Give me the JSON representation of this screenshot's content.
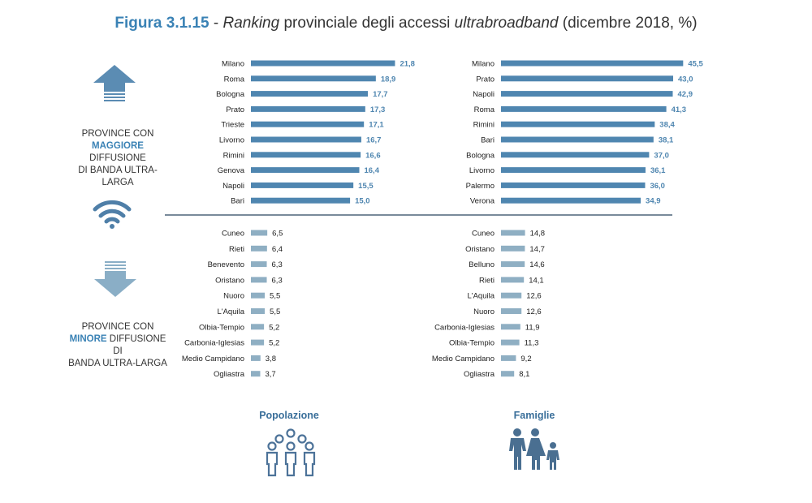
{
  "header": {
    "figure_label": "Figura 3.1.15",
    "sep": " - ",
    "part1": "Ranking",
    "part2": " provinciale degli accessi ",
    "part3": "ultrabroadband",
    "part4": " (dicembre 2018, %)"
  },
  "side_top": {
    "line1": "PROVINCE CON",
    "highlight": "MAGGIORE",
    "line2": " DIFFUSIONE",
    "line3": "DI BANDA ULTRA-",
    "line4": "LARGA"
  },
  "side_bottom": {
    "line1": "PROVINCE CON",
    "highlight": "MINORE",
    "line2": " DIFFUSIONE DI",
    "line3": "BANDA ULTRA-LARGA"
  },
  "footer": {
    "left": "Popolazione",
    "right": "Famiglie"
  },
  "colors": {
    "top_bar": "#4f86b0",
    "bottom_bar": "#8fafc3",
    "divider": "#4d6478",
    "icon": "#5b8cb3",
    "icon_dark": "#4a6f91"
  },
  "icons": [
    "arrow-up-icon",
    "wifi-icon",
    "arrow-down-icon",
    "people-group-icon",
    "family-icon"
  ],
  "chart_data": [
    {
      "type": "bar",
      "orientation": "horizontal",
      "group": "Popolazione",
      "section": "top",
      "categories": [
        "Milano",
        "Roma",
        "Bologna",
        "Prato",
        "Trieste",
        "Livorno",
        "Rimini",
        "Genova",
        "Napoli",
        "Bari"
      ],
      "values": [
        21.8,
        18.9,
        17.7,
        17.3,
        17.1,
        16.7,
        16.6,
        16.4,
        15.5,
        15.0
      ],
      "labels": [
        "21,8",
        "18,9",
        "17,7",
        "17,3",
        "17,1",
        "16,7",
        "16,6",
        "16,4",
        "15,5",
        "15,0"
      ]
    },
    {
      "type": "bar",
      "orientation": "horizontal",
      "group": "Famiglie",
      "section": "top",
      "categories": [
        "Milano",
        "Prato",
        "Napoli",
        "Roma",
        "Rimini",
        "Bari",
        "Bologna",
        "Livorno",
        "Palermo",
        "Verona"
      ],
      "values": [
        45.5,
        43.0,
        42.9,
        41.3,
        38.4,
        38.1,
        37.0,
        36.1,
        36.0,
        34.9
      ],
      "labels": [
        "45,5",
        "43,0",
        "42,9",
        "41,3",
        "38,4",
        "38,1",
        "37,0",
        "36,1",
        "36,0",
        "34,9"
      ]
    },
    {
      "type": "bar",
      "orientation": "horizontal",
      "group": "Popolazione",
      "section": "bottom",
      "categories": [
        "Cuneo",
        "Rieti",
        "Benevento",
        "Oristano",
        "Nuoro",
        "L'Aquila",
        "Olbia-Tempio",
        "Carbonia-Iglesias",
        "Medio Campidano",
        "Ogliastra"
      ],
      "values": [
        6.5,
        6.4,
        6.3,
        6.3,
        5.5,
        5.5,
        5.2,
        5.2,
        3.8,
        3.7
      ],
      "labels": [
        "6,5",
        "6,4",
        "6,3",
        "6,3",
        "5,5",
        "5,5",
        "5,2",
        "5,2",
        "3,8",
        "3,7"
      ]
    },
    {
      "type": "bar",
      "orientation": "horizontal",
      "group": "Famiglie",
      "section": "bottom",
      "categories": [
        "Cuneo",
        "Oristano",
        "Belluno",
        "Rieti",
        "L'Aquila",
        "Nuoro",
        "Carbonia-Iglesias",
        "Olbia-Tempio",
        "Medio Campidano",
        "Ogliastra"
      ],
      "values": [
        14.8,
        14.7,
        14.6,
        14.1,
        12.6,
        12.6,
        11.9,
        11.3,
        9.2,
        8.1
      ],
      "labels": [
        "14,8",
        "14,7",
        "14,6",
        "14,1",
        "12,6",
        "12,6",
        "11,9",
        "11,3",
        "9,2",
        "8,1"
      ]
    }
  ]
}
